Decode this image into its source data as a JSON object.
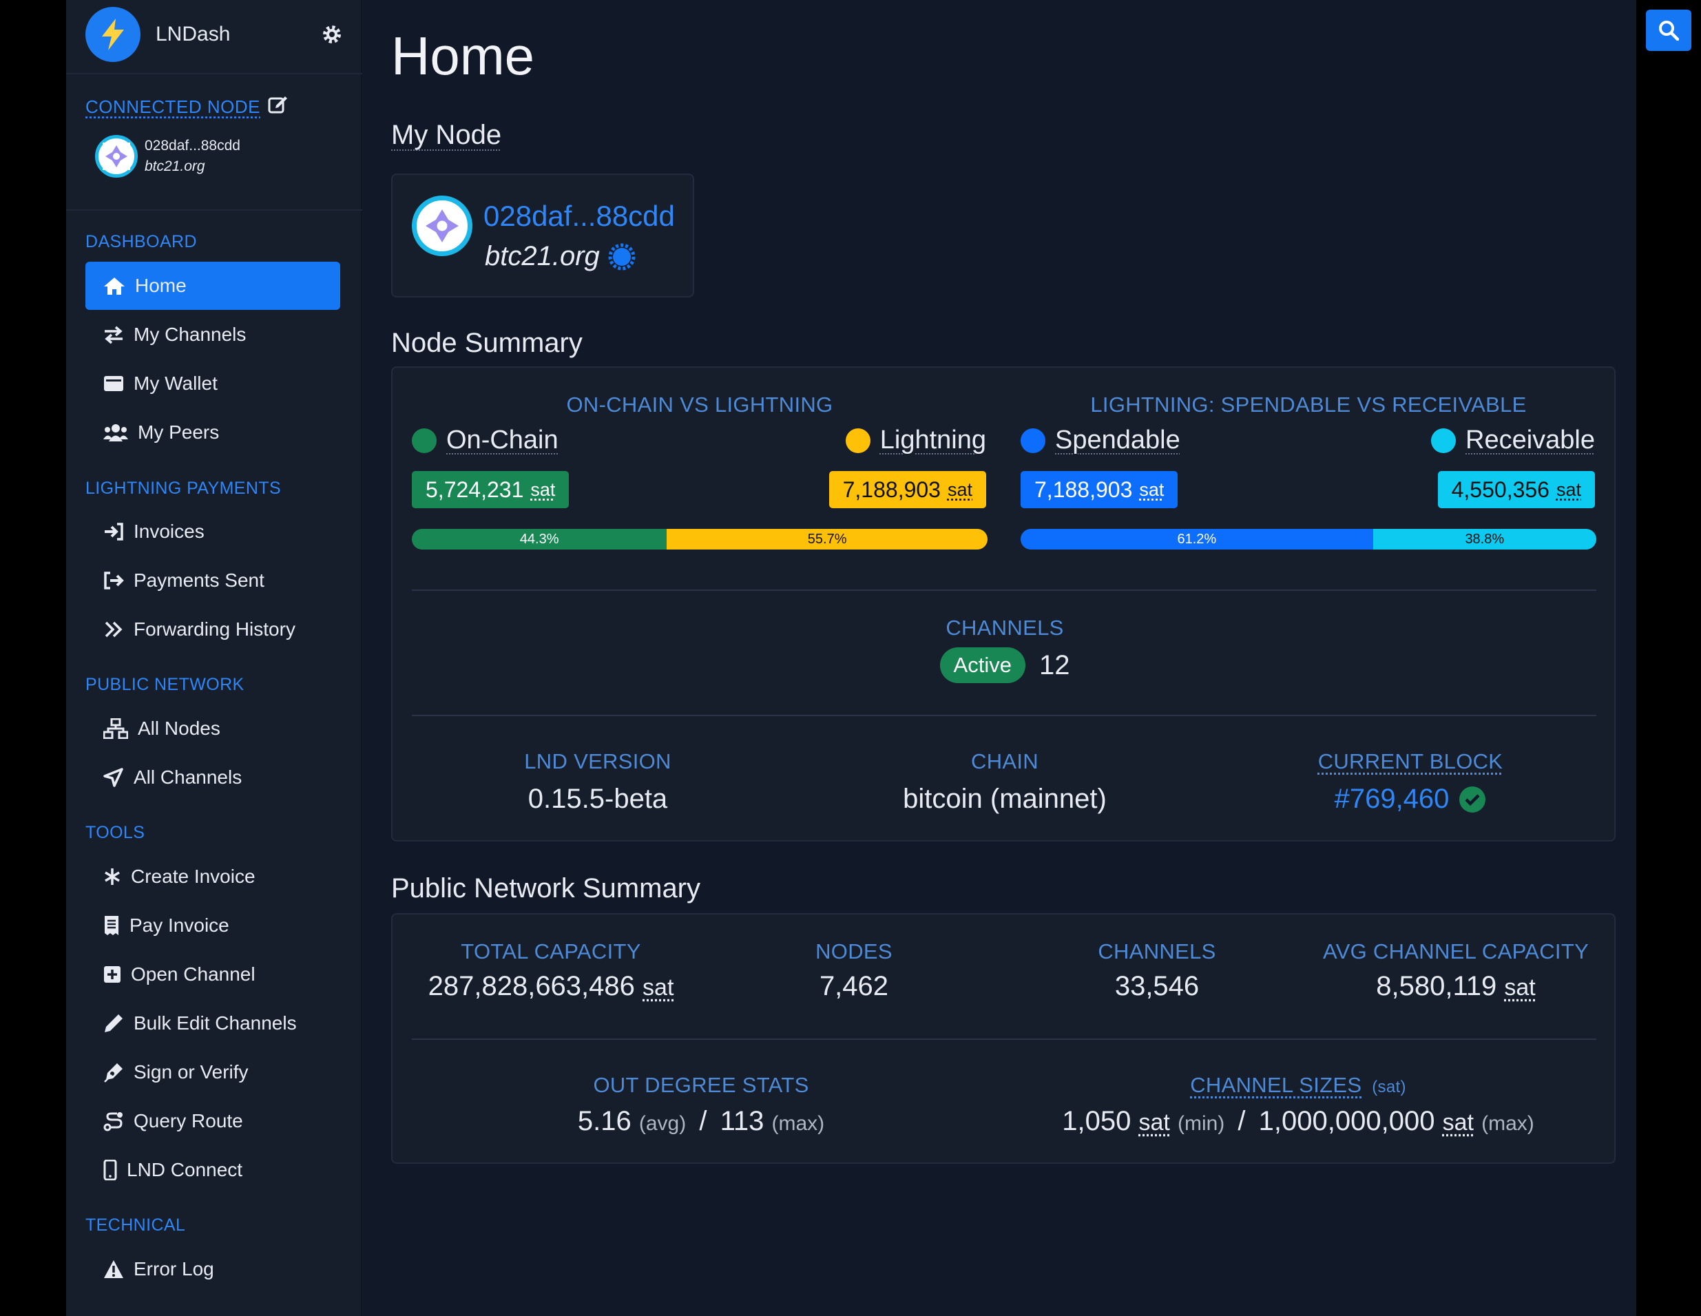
{
  "brand": {
    "name": "LNDash"
  },
  "connected": {
    "label": "CONNECTED NODE",
    "pubkey": "028daf...88cdd",
    "alias": "btc21.org"
  },
  "nav": {
    "dashboard": "DASHBOARD",
    "home": "Home",
    "channels": "My Channels",
    "wallet": "My Wallet",
    "peers": "My Peers",
    "payments": "LIGHTNING PAYMENTS",
    "invoices": "Invoices",
    "sent": "Payments Sent",
    "forwarding": "Forwarding History",
    "public": "PUBLIC NETWORK",
    "nodes": "All Nodes",
    "allchannels": "All Channels",
    "tools": "TOOLS",
    "create": "Create Invoice",
    "pay": "Pay Invoice",
    "open": "Open Channel",
    "bulk": "Bulk Edit Channels",
    "sign": "Sign or Verify",
    "route": "Query Route",
    "connect": "LND Connect",
    "technical": "TECHNICAL",
    "errors": "Error Log"
  },
  "page": {
    "title": "Home",
    "my_node": "My Node",
    "node_summary": "Node Summary",
    "public_summary": "Public Network Summary"
  },
  "node": {
    "pubkey": "028daf...88cdd",
    "alias": "btc21.org"
  },
  "summary": {
    "left_title": "ON-CHAIN VS LIGHTNING",
    "right_title": "LIGHTNING: SPENDABLE VS RECEIVABLE",
    "onchain_label": "On-Chain",
    "onchain_value": "5,724,231",
    "lightning_label": "Lightning",
    "lightning_value": "7,188,903",
    "spendable_label": "Spendable",
    "spendable_value": "7,188,903",
    "receivable_label": "Receivable",
    "receivable_value": "4,550,356",
    "unit": "sat",
    "pct_onchain": "44.3%",
    "pct_lightning": "55.7%",
    "pct_spendable": "61.2%",
    "pct_receivable": "38.8%",
    "onchain_fraction": 0.443,
    "spendable_fraction": 0.612,
    "channels_label": "CHANNELS",
    "active_label": "Active",
    "active_count": "12",
    "lnd_label": "LND VERSION",
    "lnd_value": "0.15.5-beta",
    "chain_label": "CHAIN",
    "chain_value": "bitcoin (mainnet)",
    "block_label": "CURRENT BLOCK",
    "block_value": "#769,460"
  },
  "network": {
    "cap_label": "TOTAL CAPACITY",
    "cap_value": "287,828,663,486",
    "nodes_label": "NODES",
    "nodes_value": "7,462",
    "channels_label": "CHANNELS",
    "channels_value": "33,546",
    "avg_label": "AVG CHANNEL CAPACITY",
    "avg_value": "8,580,119",
    "unit": "sat",
    "degree_label": "OUT DEGREE STATS",
    "degree_avg": "5.16",
    "avg_tag": "(avg)",
    "degree_max": "113",
    "max_tag": "(max)",
    "sizes_label": "CHANNEL SIZES",
    "sizes_unit": "(sat)",
    "size_min": "1,050",
    "min_tag": "(min)",
    "size_max": "1,000,000,000",
    "slash": "/"
  },
  "colors": {
    "accent": "#1677f5",
    "onchain": "#198754",
    "lightning": "#ffc107",
    "spendable": "#0d6efd",
    "receivable": "#0dcaf0"
  }
}
